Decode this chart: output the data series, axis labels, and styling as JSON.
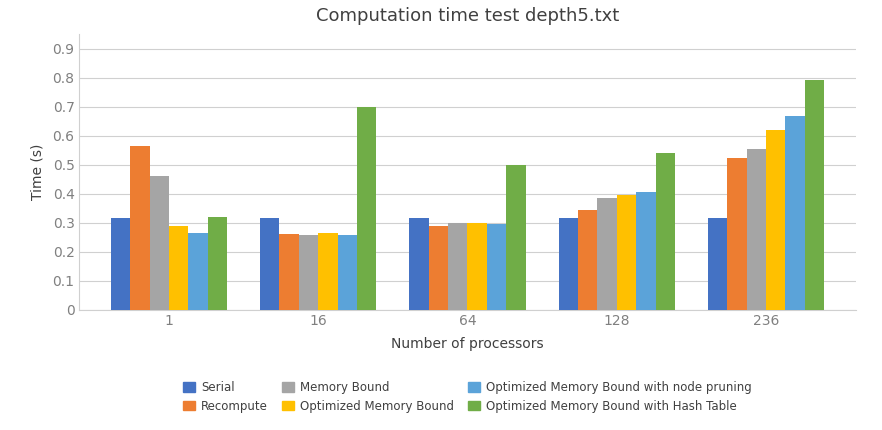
{
  "title": "Computation time test depth5.txt",
  "xlabel": "Number of processors",
  "ylabel": "Time (s)",
  "categories": [
    "1",
    "16",
    "64",
    "128",
    "236"
  ],
  "series": {
    "Serial": [
      0.315,
      0.315,
      0.315,
      0.315,
      0.315
    ],
    "Recompute": [
      0.565,
      0.26,
      0.29,
      0.345,
      0.525
    ],
    "Memory Bound": [
      0.46,
      0.257,
      0.3,
      0.385,
      0.555
    ],
    "Optimized Memory Bound": [
      0.29,
      0.263,
      0.3,
      0.395,
      0.62
    ],
    "Optimized Memory Bound with node pruning": [
      0.265,
      0.258,
      0.295,
      0.405,
      0.67
    ],
    "Optimized Memory Bound with Hash Table": [
      0.32,
      0.7,
      0.5,
      0.54,
      0.793
    ]
  },
  "colors": {
    "Serial": "#4472C4",
    "Recompute": "#ED7D31",
    "Memory Bound": "#A5A5A5",
    "Optimized Memory Bound": "#FFC000",
    "Optimized Memory Bound with node pruning": "#5BA3D9",
    "Optimized Memory Bound with Hash Table": "#70AD47"
  },
  "ylim": [
    0,
    0.95
  ],
  "yticks": [
    0,
    0.1,
    0.2,
    0.3,
    0.4,
    0.5,
    0.6,
    0.7,
    0.8,
    0.9
  ],
  "background_color": "#FFFFFF",
  "title_color": "#404040",
  "axis_color": "#808080",
  "grid_color": "#D0D0D0",
  "title_fontsize": 13,
  "axis_label_fontsize": 10,
  "tick_fontsize": 10,
  "legend_fontsize": 8.5,
  "bar_width": 0.13
}
